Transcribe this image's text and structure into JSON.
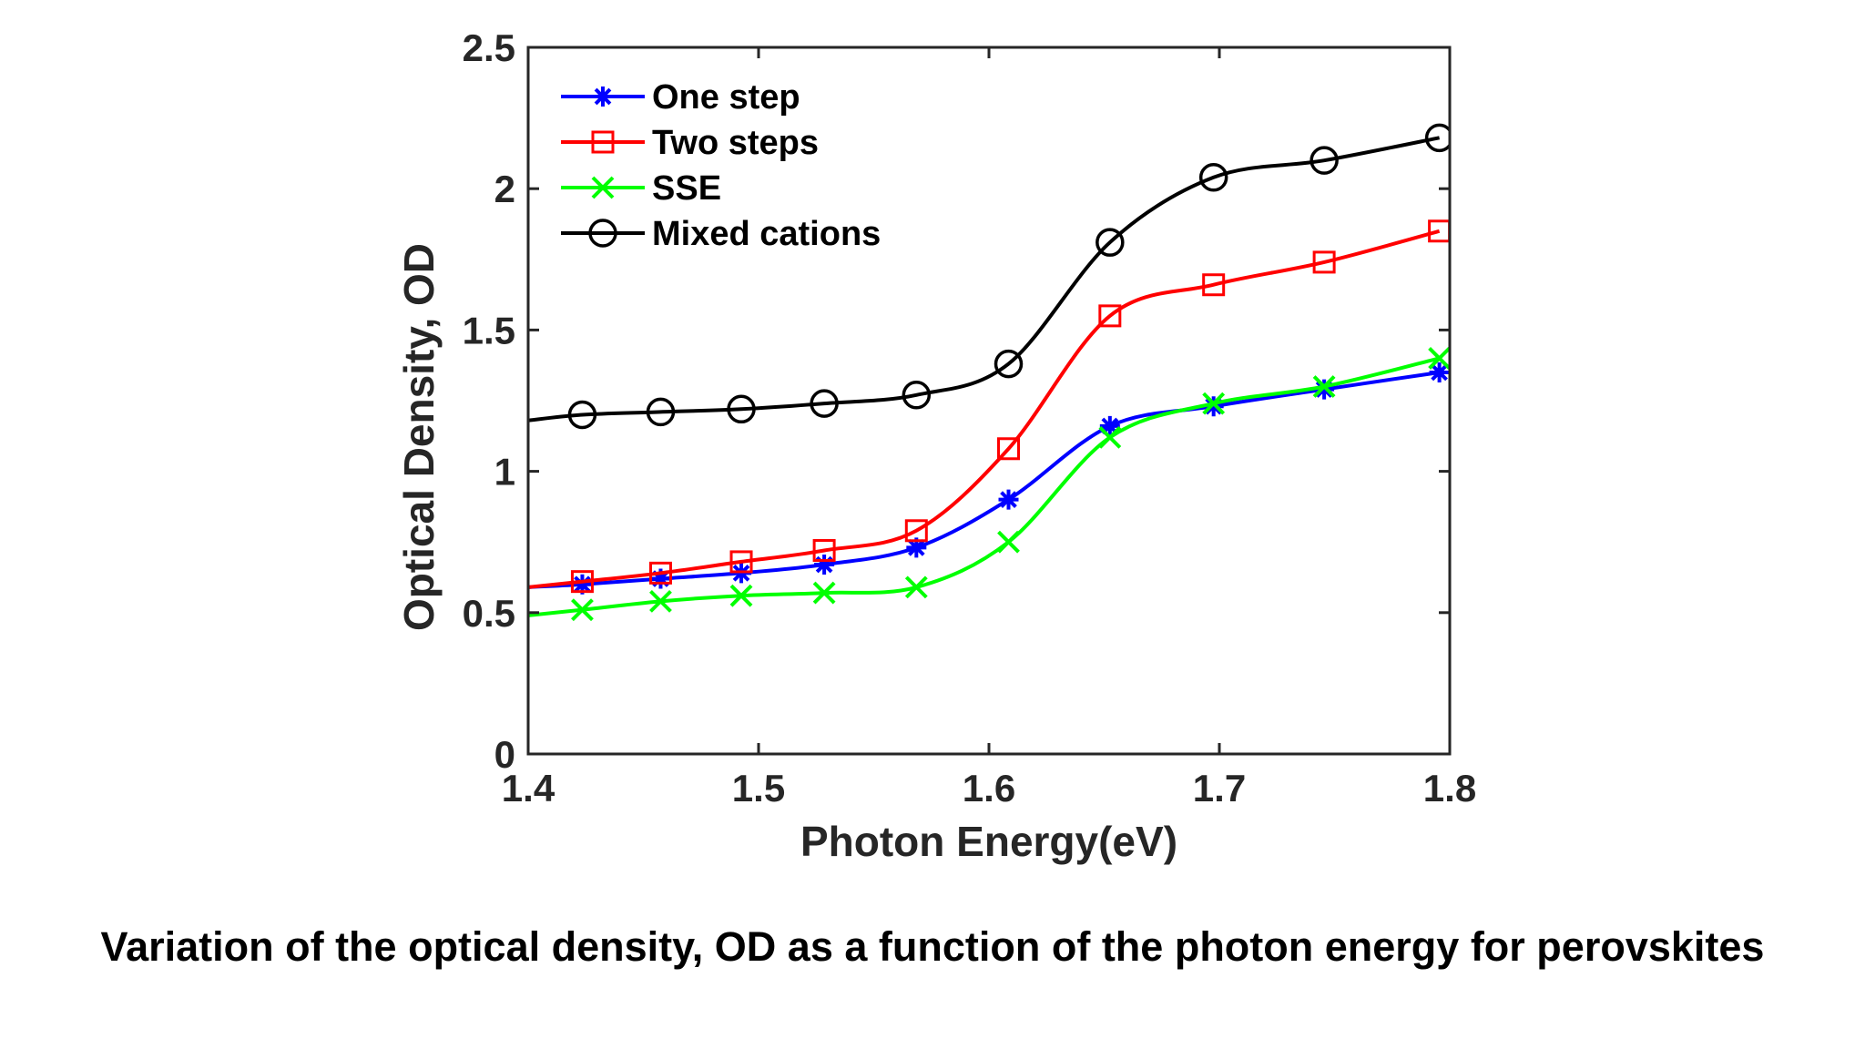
{
  "caption": "Variation of the optical density, OD as a function of the photon energy for perovskites",
  "chart_data": {
    "type": "line",
    "title": "",
    "xlabel": "Photon Energy(eV)",
    "ylabel": "Optical Density, OD",
    "xlim": [
      1.4,
      1.8
    ],
    "ylim": [
      0,
      2.5
    ],
    "xticks": [
      "1.4",
      "1.5",
      "1.6",
      "1.7",
      "1.8"
    ],
    "yticks": [
      "0",
      "0.5",
      "1",
      "1.5",
      "2",
      "2.5"
    ],
    "grid": false,
    "legend_position": "top-left",
    "x": [
      1.4235,
      1.4575,
      1.4925,
      1.5285,
      1.5685,
      1.6085,
      1.6525,
      1.6975,
      1.7455,
      1.7955
    ],
    "series": [
      {
        "name": "One step",
        "color": "#0000ff",
        "marker": "asterisk",
        "values": [
          0.6,
          0.62,
          0.64,
          0.67,
          0.73,
          0.9,
          1.16,
          1.23,
          1.29,
          1.35
        ],
        "curve_start": [
          1.4,
          0.59
        ]
      },
      {
        "name": "Two steps",
        "color": "#ff0000",
        "marker": "square",
        "values": [
          0.61,
          0.64,
          0.68,
          0.72,
          0.79,
          1.08,
          1.55,
          1.66,
          1.74,
          1.85
        ],
        "curve_start": [
          1.4,
          0.59
        ]
      },
      {
        "name": "SSE",
        "color": "#00ff00",
        "marker": "x",
        "values": [
          0.51,
          0.54,
          0.56,
          0.57,
          0.59,
          0.75,
          1.12,
          1.24,
          1.3,
          1.4
        ],
        "curve_start": [
          1.4,
          0.49
        ]
      },
      {
        "name": "Mixed cations",
        "color": "#000000",
        "marker": "circle",
        "values": [
          1.2,
          1.21,
          1.22,
          1.24,
          1.27,
          1.38,
          1.81,
          2.04,
          2.1,
          2.18
        ],
        "curve_start": [
          1.4,
          1.18
        ]
      }
    ]
  }
}
